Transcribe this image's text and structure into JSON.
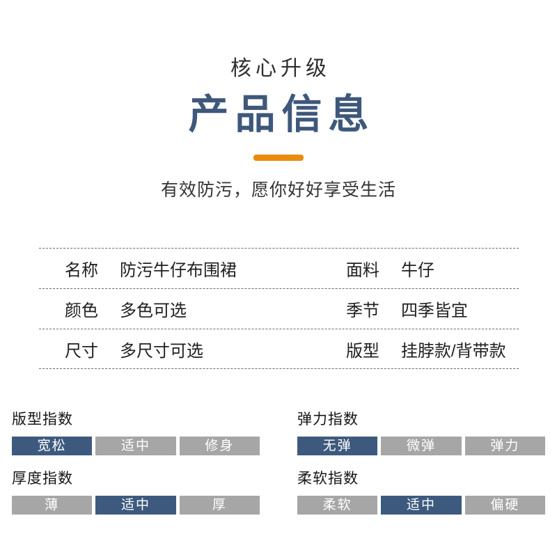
{
  "header": {
    "subtitle": "核心升级",
    "title": "产品信息",
    "tagline": "有效防污，愿你好好享受生活"
  },
  "colors": {
    "title_blue": "#3e587b",
    "divider_orange": "#e98c0d",
    "segment_active_blue": "#3d5a7e",
    "segment_inactive_gray": "#a6a6a6"
  },
  "spec_table": {
    "rows": [
      {
        "left": {
          "label": "名称",
          "value": "防污牛仔布围裙"
        },
        "right": {
          "label": "面料",
          "value": "牛仔"
        }
      },
      {
        "left": {
          "label": "颜色",
          "value": "多色可选"
        },
        "right": {
          "label": "季节",
          "value": "四季皆宜"
        }
      },
      {
        "left": {
          "label": "尺寸",
          "value": "多尺寸可选"
        },
        "right": {
          "label": "版型",
          "value": "挂脖款/背带款"
        }
      }
    ]
  },
  "indexes": [
    {
      "title": "版型指数",
      "options": [
        "宽松",
        "适中",
        "修身"
      ],
      "active_index": 0
    },
    {
      "title": "弹力指数",
      "options": [
        "无弹",
        "微弹",
        "弹力"
      ],
      "active_index": 0
    },
    {
      "title": "厚度指数",
      "options": [
        "薄",
        "适中",
        "厚"
      ],
      "active_index": 1
    },
    {
      "title": "柔软指数",
      "options": [
        "柔软",
        "适中",
        "偏硬"
      ],
      "active_index": 1
    }
  ]
}
